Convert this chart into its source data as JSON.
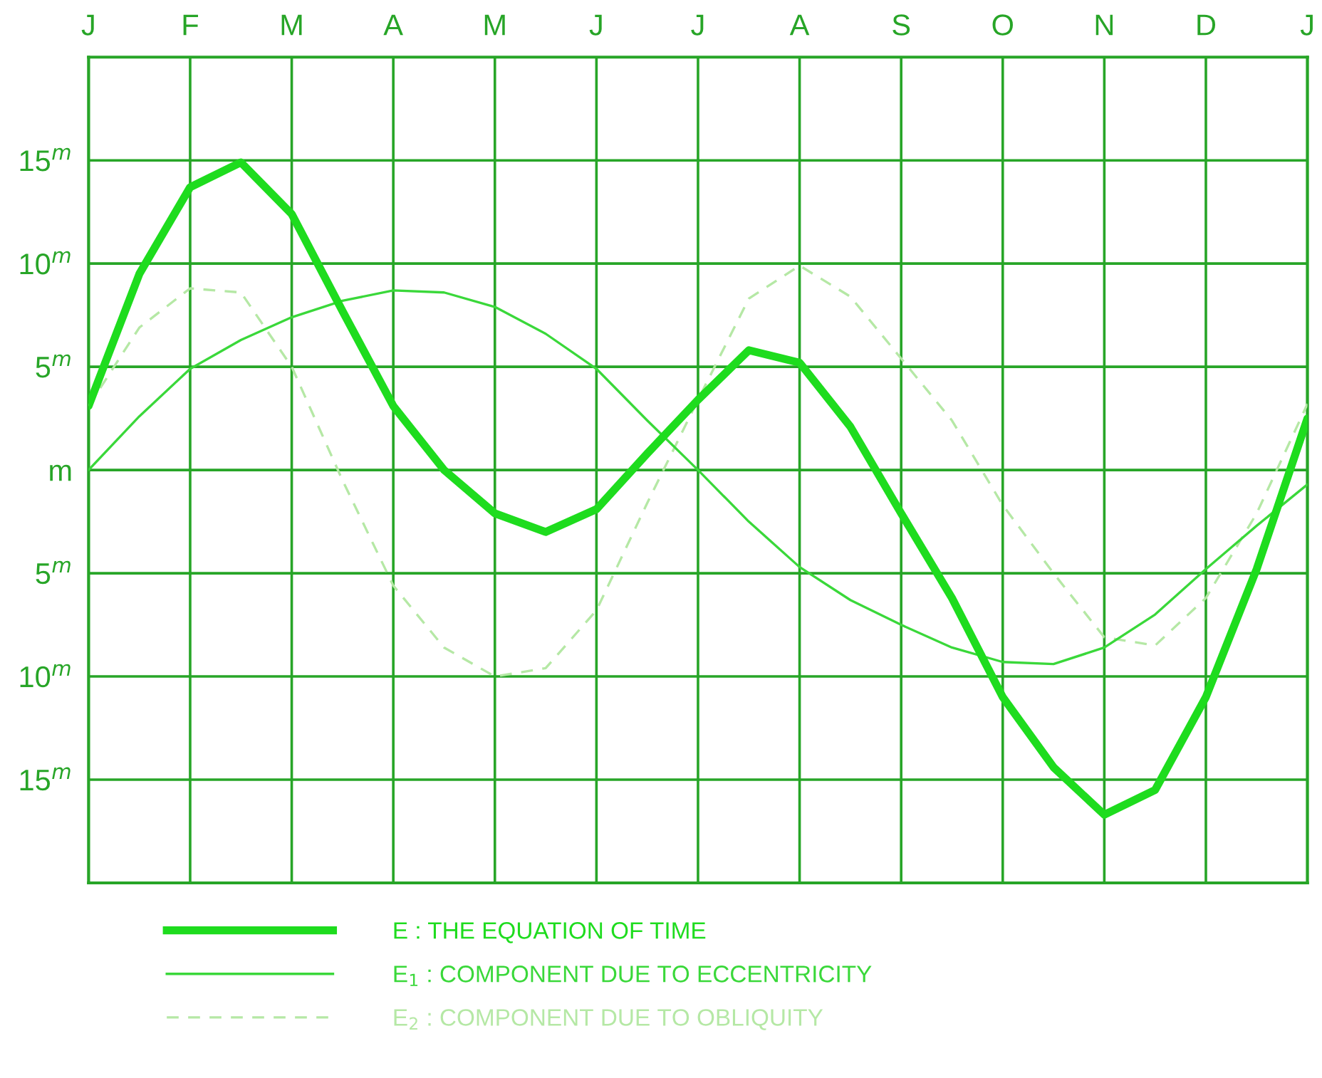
{
  "chart_data": {
    "type": "line",
    "categories": [
      "J",
      null,
      "F",
      null,
      "M",
      null,
      "A",
      null,
      "M",
      null,
      "J",
      null,
      "J",
      null,
      "A",
      null,
      "S",
      null,
      "O",
      null,
      "N",
      null,
      "D",
      null,
      "J"
    ],
    "series": [
      {
        "name": "E : THE EQUATION OF TIME",
        "color": "#1edc1e",
        "values": [
          3.1,
          9.5,
          13.7,
          14.9,
          12.4,
          7.7,
          3.1,
          0,
          -2.1,
          -3.0,
          -1.9,
          0.8,
          3.4,
          5.8,
          5.2,
          2.1,
          -2.1,
          -6.2,
          -11.0,
          -14.4,
          -16.7,
          -15.5,
          -11.0,
          -4.8,
          2.5
        ]
      },
      {
        "name": "E$_{1}$ : COMPONENT DUE TO ECCENTRICITY",
        "color": "#3ad83a",
        "values": [
          0,
          2.6,
          4.9,
          6.3,
          7.4,
          8.2,
          8.7,
          8.6,
          7.9,
          6.6,
          4.9,
          2.4,
          0,
          -2.5,
          -4.7,
          -6.3,
          -7.5,
          -8.6,
          -9.3,
          -9.4,
          -8.6,
          -7.0,
          -4.8,
          -2.7,
          -0.7
        ]
      },
      {
        "name": "E$_{2}$ : COMPONENT DUE TO OBLIQUITY",
        "color": "#b5e8a5",
        "line_style": "dashed",
        "values": [
          3.1,
          6.9,
          8.8,
          8.6,
          5.0,
          -0.5,
          -5.6,
          -8.6,
          -10.0,
          -9.6,
          -6.8,
          -1.6,
          3.4,
          8.3,
          9.9,
          8.4,
          5.4,
          2.4,
          -1.7,
          -5.0,
          -8.1,
          -8.5,
          -6.2,
          -2.1,
          3.2
        ]
      }
    ],
    "ylim": [
      -20,
      20
    ],
    "yticks": [
      {
        "value": 15,
        "label": "15$^{m}$"
      },
      {
        "value": 10,
        "label": "10$^{m}$"
      },
      {
        "value": 5,
        "label": "5$^{m}$"
      },
      {
        "value": 0,
        "label": "m"
      },
      {
        "value": -5,
        "label": "5$^{m}$"
      },
      {
        "value": -10,
        "label": "10$^{m}$"
      },
      {
        "value": -15,
        "label": "15$^{m}$"
      }
    ],
    "grid": true,
    "legend": "bottom",
    "line_style": "solid",
    "marker": "none"
  }
}
